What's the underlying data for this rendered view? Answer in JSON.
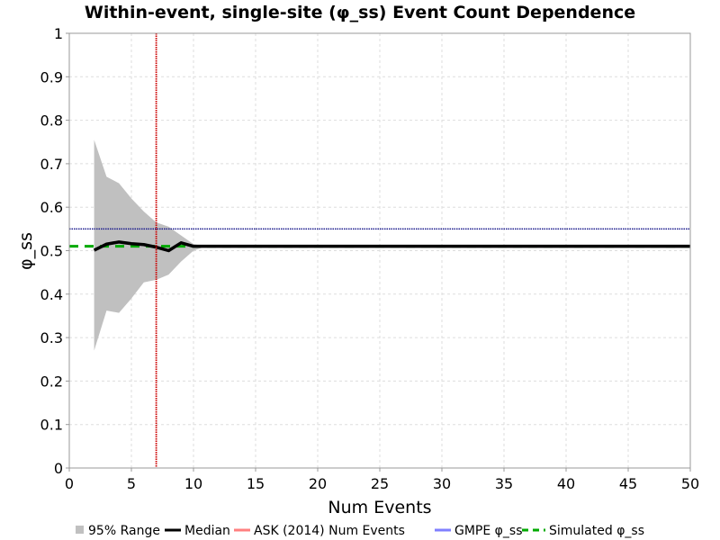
{
  "chart_data": {
    "type": "line",
    "title": "Within-event, single-site (φ_ss) Event Count Dependence",
    "xlabel": "Num Events",
    "ylabel": "φ_ss",
    "xlim": [
      0,
      50
    ],
    "ylim": [
      0,
      1
    ],
    "x_ticks": [
      "0",
      "5",
      "10",
      "15",
      "20",
      "25",
      "30",
      "35",
      "40",
      "45",
      "50"
    ],
    "y_ticks": [
      "0",
      "0.1",
      "0.2",
      "0.3",
      "0.4",
      "0.5",
      "0.6",
      "0.7",
      "0.8",
      "0.9",
      "1"
    ],
    "grid": true,
    "legend_position": "bottom",
    "series": [
      {
        "name": "95% Range",
        "kind": "band",
        "color": "#c0c0c0",
        "x": [
          2,
          3,
          4,
          5,
          6,
          7,
          8,
          9,
          10,
          11,
          50
        ],
        "upper": [
          0.755,
          0.67,
          0.655,
          0.62,
          0.59,
          0.565,
          0.555,
          0.535,
          0.515,
          0.51,
          0.51
        ],
        "lower": [
          0.27,
          0.362,
          0.357,
          0.39,
          0.427,
          0.433,
          0.445,
          0.475,
          0.5,
          0.51,
          0.51
        ]
      },
      {
        "name": "Median",
        "kind": "line",
        "color": "#000000",
        "x": [
          2,
          3,
          4,
          5,
          6,
          7,
          8,
          9,
          10,
          11,
          50
        ],
        "y": [
          0.501,
          0.515,
          0.52,
          0.516,
          0.514,
          0.508,
          0.5,
          0.518,
          0.51,
          0.51,
          0.51
        ]
      },
      {
        "name": "ASK (2014) Num Events",
        "kind": "vline",
        "color": "#cc0000",
        "x": 7
      },
      {
        "name": "GMPE φ_ss",
        "kind": "hline",
        "color": "#1a1a8c",
        "y": 0.55
      },
      {
        "name": "Simulated φ_ss",
        "kind": "hline",
        "color": "#00aa00",
        "dashed": true,
        "y": 0.51
      }
    ],
    "legend": [
      {
        "label": "95% Range",
        "swatch": "box",
        "color": "#c0c0c0"
      },
      {
        "label": "Median",
        "swatch": "line",
        "color": "#000000"
      },
      {
        "label": "ASK (2014) Num Events",
        "swatch": "line",
        "color": "#ff8080"
      },
      {
        "label": "GMPE φ_ss",
        "swatch": "line",
        "color": "#8080ff"
      },
      {
        "label": "Simulated φ_ss",
        "swatch": "dash",
        "color": "#00aa00"
      }
    ]
  }
}
